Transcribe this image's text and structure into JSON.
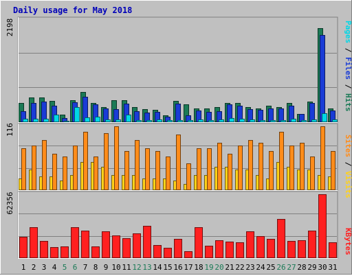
{
  "chart_data": [
    {
      "type": "bar",
      "title": "Daily usage for May 2018",
      "categories": [
        "1",
        "2",
        "3",
        "4",
        "5",
        "6",
        "7",
        "8",
        "9",
        "10",
        "11",
        "12",
        "13",
        "14",
        "15",
        "16",
        "17",
        "18",
        "19",
        "20",
        "21",
        "22",
        "23",
        "24",
        "25",
        "26",
        "27",
        "28",
        "29",
        "30",
        "31"
      ],
      "weekend_days": [
        "5",
        "6",
        "12",
        "13",
        "19",
        "20",
        "26",
        "27"
      ],
      "ymax_label": "2198",
      "ylim": [
        0,
        2198
      ],
      "axis_label_parts": [
        {
          "text": "Pages",
          "color": "#00d7e6"
        },
        {
          "text": " / ",
          "color": "#000000"
        },
        {
          "text": "Files",
          "color": "#1a3cd6"
        },
        {
          "text": " / ",
          "color": "#000000"
        },
        {
          "text": "Hits",
          "color": "#1b7a56"
        }
      ],
      "series": [
        {
          "name": "Hits",
          "color": "#1b7a56",
          "values": [
            405,
            520,
            520,
            445,
            150,
            470,
            640,
            400,
            315,
            460,
            460,
            310,
            270,
            250,
            130,
            450,
            380,
            280,
            290,
            310,
            410,
            400,
            320,
            290,
            340,
            320,
            410,
            170,
            435,
            2050,
            280
          ]
        },
        {
          "name": "Files",
          "color": "#1a3cd6",
          "values": [
            220,
            410,
            430,
            340,
            70,
            420,
            540,
            380,
            280,
            265,
            390,
            220,
            200,
            210,
            110,
            390,
            140,
            240,
            210,
            230,
            370,
            350,
            270,
            250,
            280,
            290,
            350,
            160,
            400,
            1900,
            240
          ]
        },
        {
          "name": "Pages",
          "color": "#00d7e6",
          "values": [
            55,
            65,
            60,
            150,
            15,
            310,
            90,
            110,
            40,
            45,
            150,
            35,
            30,
            40,
            25,
            30,
            30,
            45,
            35,
            40,
            75,
            55,
            45,
            35,
            35,
            35,
            55,
            25,
            50,
            180,
            40
          ]
        }
      ]
    },
    {
      "type": "bar",
      "ymax_label": "116",
      "ylim": [
        0,
        116
      ],
      "axis_label_parts": [
        {
          "text": "Sites",
          "color": "#ff8c1a"
        },
        {
          "text": " / ",
          "color": "#000000"
        },
        {
          "text": "Visits",
          "color": "#ffd21a"
        }
      ],
      "series": [
        {
          "name": "Visits",
          "color": "#ffd21a",
          "values": [
            20,
            36,
            24,
            24,
            16,
            26,
            50,
            50,
            41,
            26,
            26,
            26,
            20,
            20,
            20,
            16,
            10,
            26,
            26,
            41,
            41,
            36,
            36,
            26,
            20,
            50,
            41,
            36,
            36,
            26,
            24
          ]
        },
        {
          "name": "Sites",
          "color": "#ff8c1a",
          "values": [
            76,
            81,
            91,
            66,
            61,
            81,
            106,
            60,
            103,
            116,
            70,
            91,
            76,
            71,
            60,
            101,
            48,
            76,
            76,
            86,
            66,
            81,
            91,
            86,
            71,
            106,
            81,
            86,
            61,
            116,
            70
          ]
        }
      ]
    },
    {
      "type": "bar",
      "ymax_label": "62356",
      "ylim": [
        0,
        62356
      ],
      "axis_label_parts": [
        {
          "text": "KBytes",
          "color": "#ff2020"
        }
      ],
      "series": [
        {
          "name": "KBytes",
          "color": "#ff2020",
          "values": [
            20500,
            30000,
            16000,
            10000,
            11000,
            30000,
            26500,
            11000,
            26000,
            21500,
            19000,
            24000,
            31000,
            12000,
            9500,
            18000,
            6000,
            29500,
            11500,
            17000,
            15500,
            15000,
            25500,
            21000,
            18000,
            38000,
            16000,
            17000,
            26500,
            62356,
            15000
          ]
        }
      ]
    }
  ]
}
